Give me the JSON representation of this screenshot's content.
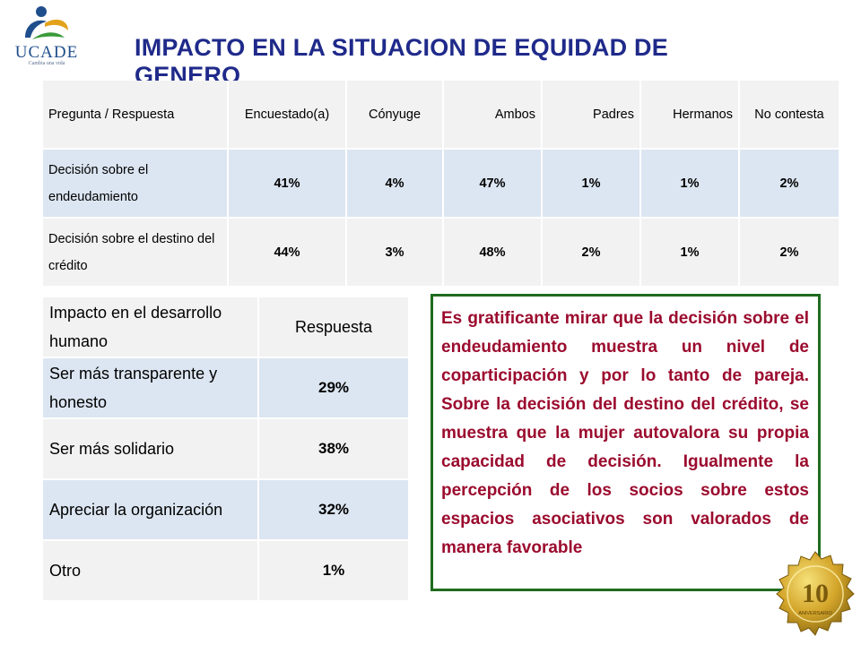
{
  "logo": {
    "name": "UCADE",
    "tagline": "Cambia una vida",
    "icon": "ucade-logo-icon"
  },
  "title": "IMPACTO EN LA SITUACION DE EQUIDAD DE GENERO",
  "table1": {
    "headers": [
      "Pregunta / Respuesta",
      "Encuestado(a)",
      "Cónyuge",
      "Ambos",
      "Padres",
      "Hermanos",
      "No contesta"
    ],
    "rows": [
      {
        "question": "Decisión sobre el endeudamiento",
        "values": [
          "41%",
          "4%",
          "47%",
          "1%",
          "1%",
          "2%"
        ]
      },
      {
        "question": "Decisión sobre el destino del crédito",
        "values": [
          "44%",
          "3%",
          "48%",
          "2%",
          "1%",
          "2%"
        ]
      }
    ]
  },
  "table2": {
    "headers": [
      "Impacto en el desarrollo humano",
      "Respuesta"
    ],
    "rows": [
      {
        "label": "Ser más transparente y honesto",
        "value": "29%"
      },
      {
        "label": "Ser más solidario",
        "value": "38%"
      },
      {
        "label": "Apreciar la organización",
        "value": "32%"
      },
      {
        "label": "Otro",
        "value": "1%"
      }
    ]
  },
  "note": "Es gratificante mirar que la decisión sobre el endeudamiento muestra un nivel de coparticipación y por lo tanto de pareja. Sobre la decisión del destino del crédito, se muestra que la mujer autovalora su propia capacidad de decisión. Igualmente la percepción de los socios sobre estos espacios asociativos son valorados de manera favorable",
  "seal": {
    "number": "10",
    "text": "ANIVERSARIO",
    "icon": "anniversary-seal-icon"
  },
  "colors": {
    "title": "#1f2a8a",
    "note_text": "#9b0b2e",
    "note_border": "#1f6b1f",
    "row_blue": "#dce6f2",
    "row_grey": "#f2f2f2"
  }
}
